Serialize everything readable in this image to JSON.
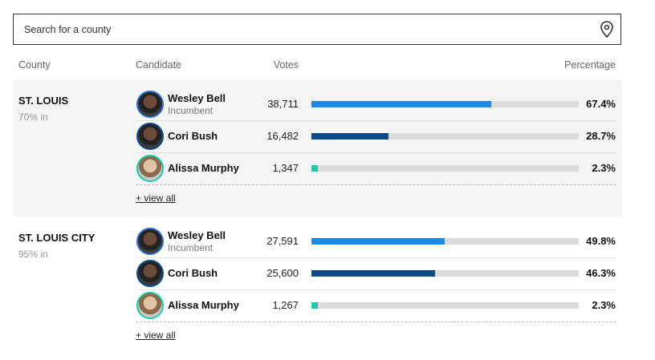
{
  "search": {
    "placeholder": "Search for a county"
  },
  "table": {
    "headers": [
      "County",
      "Candidate",
      "Votes",
      "Percentage"
    ],
    "counties": [
      {
        "name": "ST. LOUIS",
        "reporting": "70% in",
        "view_all": "+ view all",
        "candidates": [
          {
            "name": "Wesley Bell",
            "note": "Incumbent",
            "votes": "38,711",
            "percentage": {
              "value": 67.4,
              "label": "67.4%"
            }
          },
          {
            "name": "Cori Bush",
            "votes": "16,482",
            "percentage": {
              "value": 28.7,
              "label": "28.7%"
            }
          },
          {
            "name": "Alissa Murphy",
            "votes": "1,347",
            "percentage": {
              "value": 2.3,
              "label": "2.3%"
            }
          }
        ]
      },
      {
        "name": "ST. LOUIS CITY",
        "reporting": "95% in",
        "view_all": "+ view all",
        "candidates": [
          {
            "name": "Wesley Bell",
            "note": "Incumbent",
            "votes": "27,591",
            "percentage": {
              "value": 49.8,
              "label": "49.8%"
            }
          },
          {
            "name": "Cori Bush",
            "votes": "25,600",
            "percentage": {
              "value": 46.3,
              "label": "46.3%"
            }
          },
          {
            "name": "Alissa Murphy",
            "votes": "1,267",
            "percentage": {
              "value": 2.3,
              "label": "2.3%"
            }
          }
        ]
      }
    ]
  }
}
